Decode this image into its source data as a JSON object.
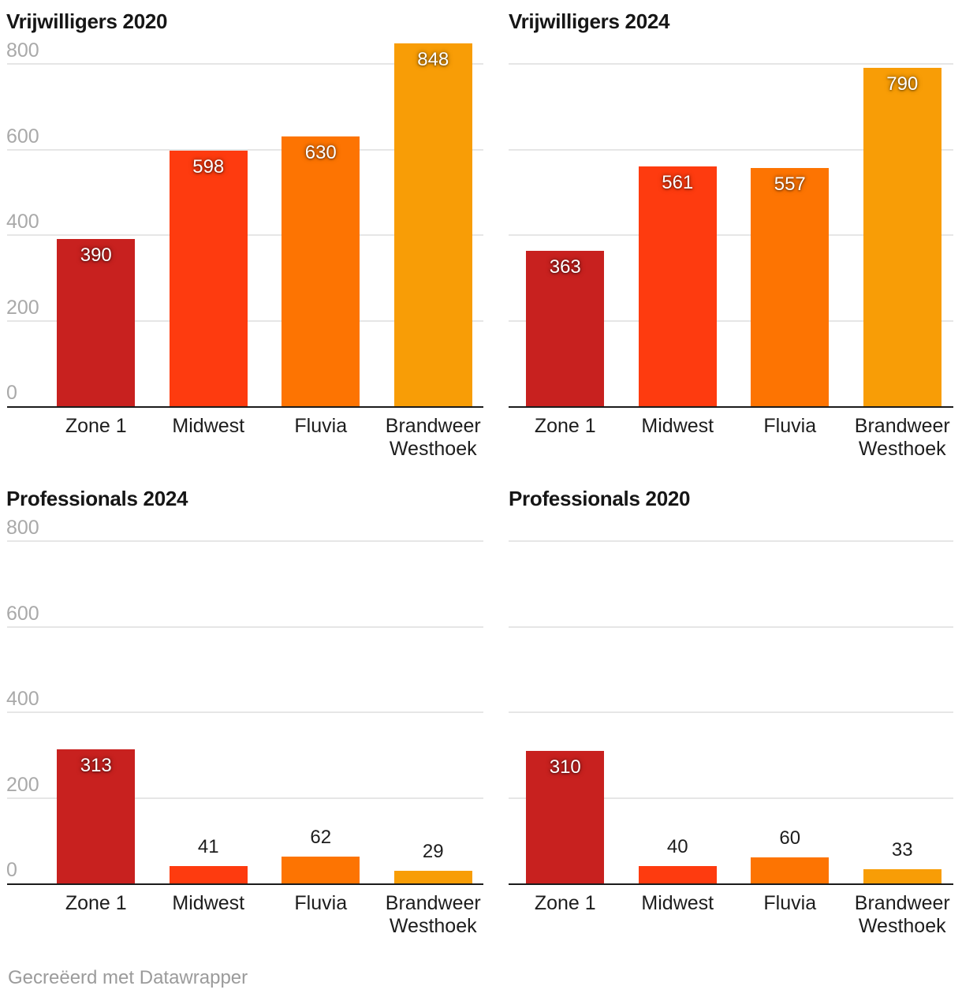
{
  "footer": {
    "credit": "Gecreëerd met Datawrapper"
  },
  "colors": {
    "bar_palette": [
      "#c8211f",
      "#fe3b0f",
      "#fd7402",
      "#f89d06"
    ],
    "grid_line": "#e6e6e6",
    "axis_line": "#1b1b1b",
    "tick_label": "#a9a9a9",
    "category_label": "#1d1d1d",
    "value_label_inside": "#ffffff",
    "value_label_outside": "#1d1d1d",
    "title": "#161616",
    "footer_text": "#9b9b9b",
    "background": "#ffffff"
  },
  "chart_data": [
    {
      "type": "bar",
      "title": "Vrijwilligers 2020",
      "categories": [
        "Zone 1",
        "Midwest",
        "Fluvia",
        "Brandweer Westhoek"
      ],
      "values": [
        390,
        598,
        630,
        848
      ],
      "ylim": [
        0,
        860
      ],
      "yticks": [
        0,
        200,
        400,
        600,
        800
      ],
      "ytick_labels_shown": true,
      "grid": true,
      "legend": "none",
      "value_labels": true
    },
    {
      "type": "bar",
      "title": "Vrijwilligers 2024",
      "categories": [
        "Zone 1",
        "Midwest",
        "Fluvia",
        "Brandweer Westhoek"
      ],
      "values": [
        363,
        561,
        557,
        790
      ],
      "ylim": [
        0,
        860
      ],
      "yticks": [
        0,
        200,
        400,
        600,
        800
      ],
      "ytick_labels_shown": false,
      "grid": true,
      "legend": "none",
      "value_labels": true
    },
    {
      "type": "bar",
      "title": "Professionals 2024",
      "categories": [
        "Zone 1",
        "Midwest",
        "Fluvia",
        "Brandweer Westhoek"
      ],
      "values": [
        313,
        41,
        62,
        29
      ],
      "ylim": [
        0,
        860
      ],
      "yticks": [
        0,
        200,
        400,
        600,
        800
      ],
      "ytick_labels_shown": true,
      "grid": true,
      "legend": "none",
      "value_labels": true
    },
    {
      "type": "bar",
      "title": "Professionals 2020",
      "categories": [
        "Zone 1",
        "Midwest",
        "Fluvia",
        "Brandweer Westhoek"
      ],
      "values": [
        310,
        40,
        60,
        33
      ],
      "ylim": [
        0,
        860
      ],
      "yticks": [
        0,
        200,
        400,
        600,
        800
      ],
      "ytick_labels_shown": false,
      "grid": true,
      "legend": "none",
      "value_labels": true
    }
  ]
}
